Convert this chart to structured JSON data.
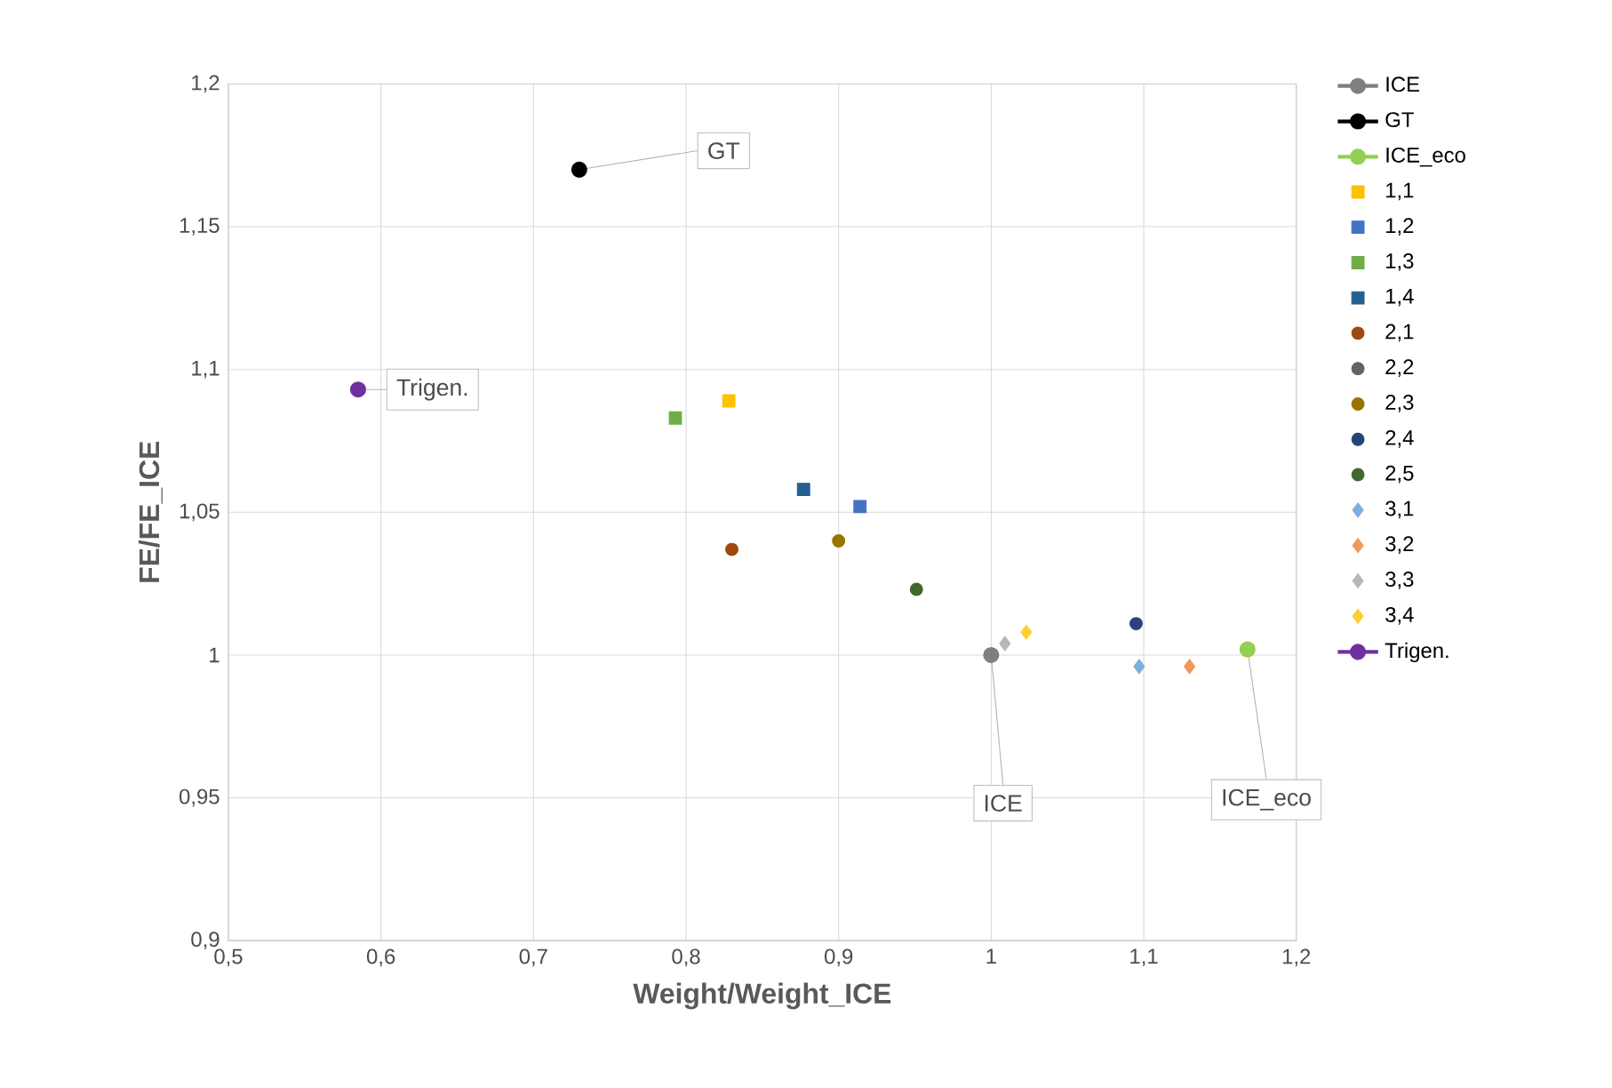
{
  "chart_data": {
    "type": "scatter",
    "xlabel": "Weight/Weight_ICE",
    "ylabel": "FE/FE_ICE",
    "xlim": [
      0.5,
      1.2
    ],
    "ylim": [
      0.9,
      1.2
    ],
    "xticks": [
      {
        "value": 0.5,
        "label": "0,5"
      },
      {
        "value": 0.6,
        "label": "0,6"
      },
      {
        "value": 0.7,
        "label": "0,7"
      },
      {
        "value": 0.8,
        "label": "0,8"
      },
      {
        "value": 0.9,
        "label": "0,9"
      },
      1,
      {
        "value": 1.1,
        "label": "1,1"
      },
      {
        "value": 1.2,
        "label": "1,2"
      }
    ],
    "yticks": [
      {
        "value": 0.9,
        "label": "0,9"
      },
      {
        "value": 0.95,
        "label": "0,95"
      },
      1,
      {
        "value": 1.05,
        "label": "1,05"
      },
      {
        "value": 1.1,
        "label": "1,1"
      },
      {
        "value": 1.15,
        "label": "1,15"
      },
      {
        "value": 1.2,
        "label": "1,2"
      }
    ],
    "grid": true,
    "legend": "right",
    "series": [
      {
        "name": "ICE",
        "type": "line",
        "marker": "circle",
        "color": "#7f7f7f",
        "x": [
          1.0
        ],
        "values": [
          1.0
        ]
      },
      {
        "name": "GT",
        "type": "line",
        "marker": "circle",
        "color": "#000000",
        "x": [
          0.73
        ],
        "values": [
          1.17
        ]
      },
      {
        "name": "ICE_eco",
        "type": "line",
        "marker": "circle",
        "color": "#92d050",
        "x": [
          1.168
        ],
        "values": [
          1.002
        ]
      },
      {
        "name": "1,1",
        "marker": "square",
        "color": "#ffc000",
        "x": [
          0.828
        ],
        "values": [
          1.089
        ]
      },
      {
        "name": "1,2",
        "marker": "square",
        "color": "#4472c4",
        "x": [
          0.914
        ],
        "values": [
          1.052
        ]
      },
      {
        "name": "1,3",
        "marker": "square",
        "color": "#70ad47",
        "x": [
          0.793
        ],
        "values": [
          1.083
        ]
      },
      {
        "name": "1,4",
        "marker": "square",
        "color": "#255e91",
        "x": [
          0.877
        ],
        "values": [
          1.058
        ]
      },
      {
        "name": "2,1",
        "marker": "circle",
        "color": "#9e480e",
        "x": [
          0.83
        ],
        "values": [
          1.037
        ]
      },
      {
        "name": "2,2",
        "marker": "circle",
        "color": "#636363",
        "x": [
          null
        ],
        "values": [
          null
        ]
      },
      {
        "name": "2,3",
        "marker": "circle",
        "color": "#997300",
        "x": [
          0.9
        ],
        "values": [
          1.04
        ]
      },
      {
        "name": "2,4",
        "marker": "circle",
        "color": "#264478",
        "x": [
          1.095
        ],
        "values": [
          1.011
        ]
      },
      {
        "name": "2,5",
        "marker": "circle",
        "color": "#43682b",
        "x": [
          0.951
        ],
        "values": [
          1.023
        ]
      },
      {
        "name": "3,1",
        "marker": "diamond",
        "color": "#7cafdd",
        "x": [
          1.097
        ],
        "values": [
          0.996
        ]
      },
      {
        "name": "3,2",
        "marker": "diamond",
        "color": "#f1975a",
        "x": [
          1.13
        ],
        "values": [
          0.996
        ]
      },
      {
        "name": "3,3",
        "marker": "diamond",
        "color": "#b7b7b7",
        "x": [
          1.009
        ],
        "values": [
          1.004
        ]
      },
      {
        "name": "3,4",
        "marker": "diamond",
        "color": "#ffcd33",
        "x": [
          1.023
        ],
        "values": [
          1.008
        ]
      },
      {
        "name": "Trigen.",
        "type": "line",
        "marker": "circle",
        "color": "#7030a0",
        "x": [
          0.585
        ],
        "values": [
          1.093
        ]
      }
    ],
    "annotations": [
      {
        "text": "GT",
        "x": 0.73,
        "y": 1.17
      },
      {
        "text": "Trigen.",
        "x": 0.585,
        "y": 1.093
      },
      {
        "text": "ICE",
        "x": 1.0,
        "y": 1.0
      },
      {
        "text": "ICE_eco",
        "x": 1.168,
        "y": 1.002
      }
    ]
  }
}
